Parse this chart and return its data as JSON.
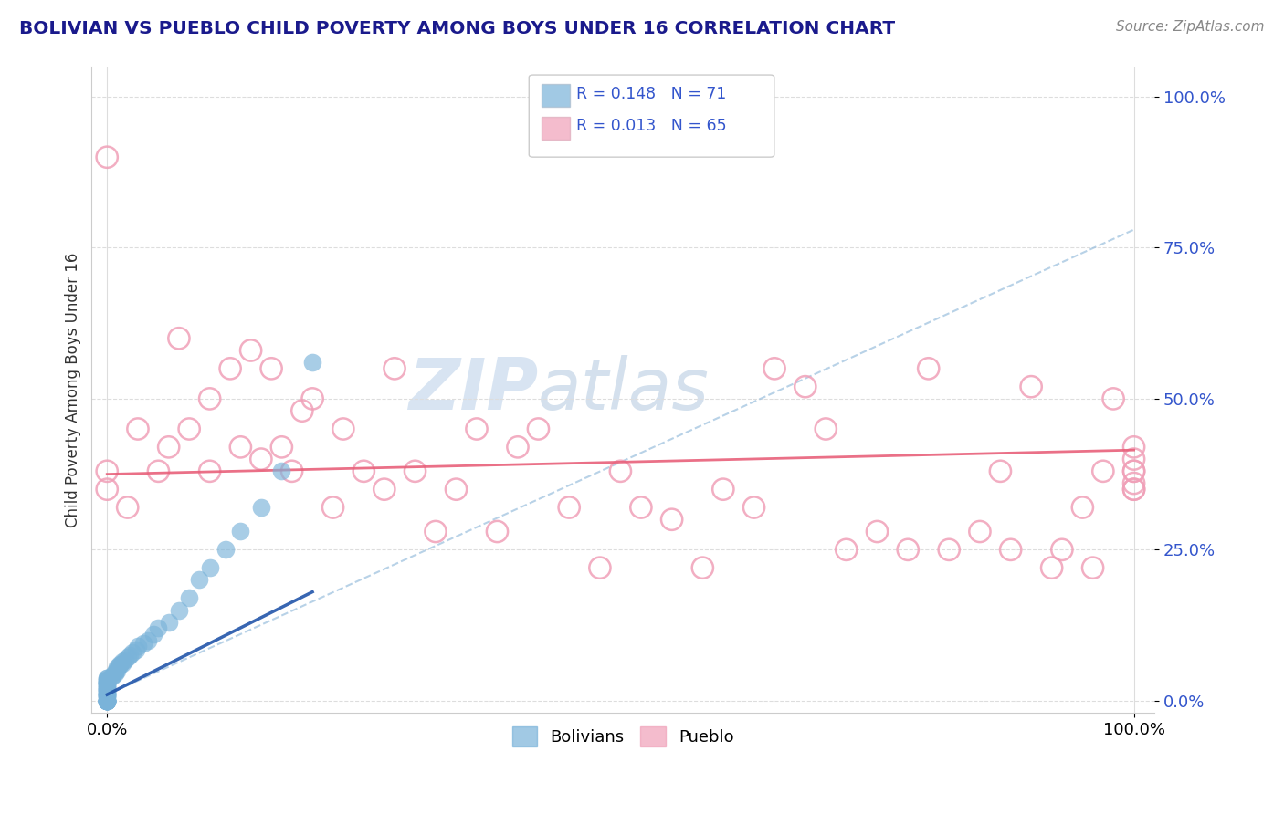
{
  "title": "BOLIVIAN VS PUEBLO CHILD POVERTY AMONG BOYS UNDER 16 CORRELATION CHART",
  "source": "Source: ZipAtlas.com",
  "ylabel": "Child Poverty Among Boys Under 16",
  "ytick_labels": [
    "0.0%",
    "25.0%",
    "50.0%",
    "75.0%",
    "100.0%"
  ],
  "ytick_values": [
    0.0,
    0.25,
    0.5,
    0.75,
    1.0
  ],
  "legend_r1": "R = 0.148",
  "legend_n1": "N = 71",
  "legend_r2": "R = 0.013",
  "legend_n2": "N = 65",
  "watermark_zip": "ZIP",
  "watermark_atlas": "atlas",
  "title_color": "#1a1a8c",
  "dot_blue_color": "#7ab3d9",
  "dot_pink_color": "#f0a0b8",
  "trend_blue_solid_color": "#2255aa",
  "trend_blue_dash_color": "#9abfdd",
  "trend_pink_color": "#e8607a",
  "legend_text_color": "#3355cc",
  "ytick_color": "#3355cc",
  "watermark_zip_color": "#b8cfe8",
  "watermark_atlas_color": "#a0bcd8",
  "grid_color": "#dddddd",
  "bolivian_scatter_x": [
    0.0,
    0.0,
    0.0,
    0.0,
    0.0,
    0.0,
    0.0,
    0.0,
    0.0,
    0.0,
    0.0,
    0.0,
    0.0,
    0.0,
    0.0,
    0.0,
    0.0,
    0.0,
    0.0,
    0.0,
    0.0,
    0.0,
    0.0,
    0.0,
    0.0,
    0.0,
    0.0,
    0.0,
    0.0,
    0.0,
    0.0,
    0.0,
    0.0,
    0.0,
    0.0,
    0.0,
    0.0,
    0.0,
    0.0,
    0.0,
    0.005,
    0.005,
    0.008,
    0.008,
    0.01,
    0.01,
    0.01,
    0.012,
    0.012,
    0.015,
    0.015,
    0.018,
    0.02,
    0.022,
    0.025,
    0.028,
    0.03,
    0.035,
    0.04,
    0.045,
    0.05,
    0.06,
    0.07,
    0.08,
    0.09,
    0.1,
    0.115,
    0.13,
    0.15,
    0.17,
    0.2
  ],
  "bolivian_scatter_y": [
    0.0,
    0.0,
    0.0,
    0.0,
    0.0,
    0.0,
    0.0,
    0.0,
    0.0,
    0.0,
    0.0,
    0.0,
    0.005,
    0.005,
    0.008,
    0.008,
    0.01,
    0.01,
    0.012,
    0.012,
    0.015,
    0.015,
    0.018,
    0.018,
    0.02,
    0.02,
    0.022,
    0.022,
    0.025,
    0.025,
    0.028,
    0.028,
    0.03,
    0.03,
    0.032,
    0.032,
    0.035,
    0.035,
    0.038,
    0.038,
    0.04,
    0.042,
    0.045,
    0.048,
    0.05,
    0.052,
    0.055,
    0.058,
    0.06,
    0.062,
    0.065,
    0.068,
    0.072,
    0.075,
    0.08,
    0.085,
    0.09,
    0.095,
    0.1,
    0.11,
    0.12,
    0.13,
    0.15,
    0.17,
    0.2,
    0.22,
    0.25,
    0.28,
    0.32,
    0.38,
    0.56
  ],
  "pueblo_scatter_x": [
    0.0,
    0.0,
    0.0,
    0.02,
    0.03,
    0.05,
    0.06,
    0.07,
    0.08,
    0.1,
    0.1,
    0.12,
    0.13,
    0.14,
    0.15,
    0.16,
    0.17,
    0.18,
    0.19,
    0.2,
    0.22,
    0.23,
    0.25,
    0.27,
    0.28,
    0.3,
    0.32,
    0.34,
    0.36,
    0.38,
    0.4,
    0.42,
    0.45,
    0.48,
    0.5,
    0.52,
    0.55,
    0.58,
    0.6,
    0.63,
    0.65,
    0.68,
    0.7,
    0.72,
    0.75,
    0.78,
    0.8,
    0.82,
    0.85,
    0.87,
    0.88,
    0.9,
    0.92,
    0.93,
    0.95,
    0.96,
    0.97,
    0.98,
    1.0,
    1.0,
    1.0,
    1.0,
    1.0,
    1.0,
    1.0
  ],
  "pueblo_scatter_y": [
    0.35,
    0.38,
    0.9,
    0.32,
    0.45,
    0.38,
    0.42,
    0.6,
    0.45,
    0.38,
    0.5,
    0.55,
    0.42,
    0.58,
    0.4,
    0.55,
    0.42,
    0.38,
    0.48,
    0.5,
    0.32,
    0.45,
    0.38,
    0.35,
    0.55,
    0.38,
    0.28,
    0.35,
    0.45,
    0.28,
    0.42,
    0.45,
    0.32,
    0.22,
    0.38,
    0.32,
    0.3,
    0.22,
    0.35,
    0.32,
    0.55,
    0.52,
    0.45,
    0.25,
    0.28,
    0.25,
    0.55,
    0.25,
    0.28,
    0.38,
    0.25,
    0.52,
    0.22,
    0.25,
    0.32,
    0.22,
    0.38,
    0.5,
    0.38,
    0.35,
    0.4,
    0.38,
    0.42,
    0.36,
    0.35
  ],
  "bolivian_trend_x": [
    0.0,
    0.2
  ],
  "bolivian_trend_y": [
    0.01,
    0.18
  ],
  "bolivian_dash_trend_x": [
    0.0,
    1.0
  ],
  "bolivian_dash_trend_y": [
    0.01,
    0.78
  ],
  "pueblo_trend_x": [
    0.0,
    1.0
  ],
  "pueblo_trend_y": [
    0.375,
    0.415
  ],
  "xlim": [
    -0.015,
    1.02
  ],
  "ylim": [
    -0.02,
    1.05
  ]
}
